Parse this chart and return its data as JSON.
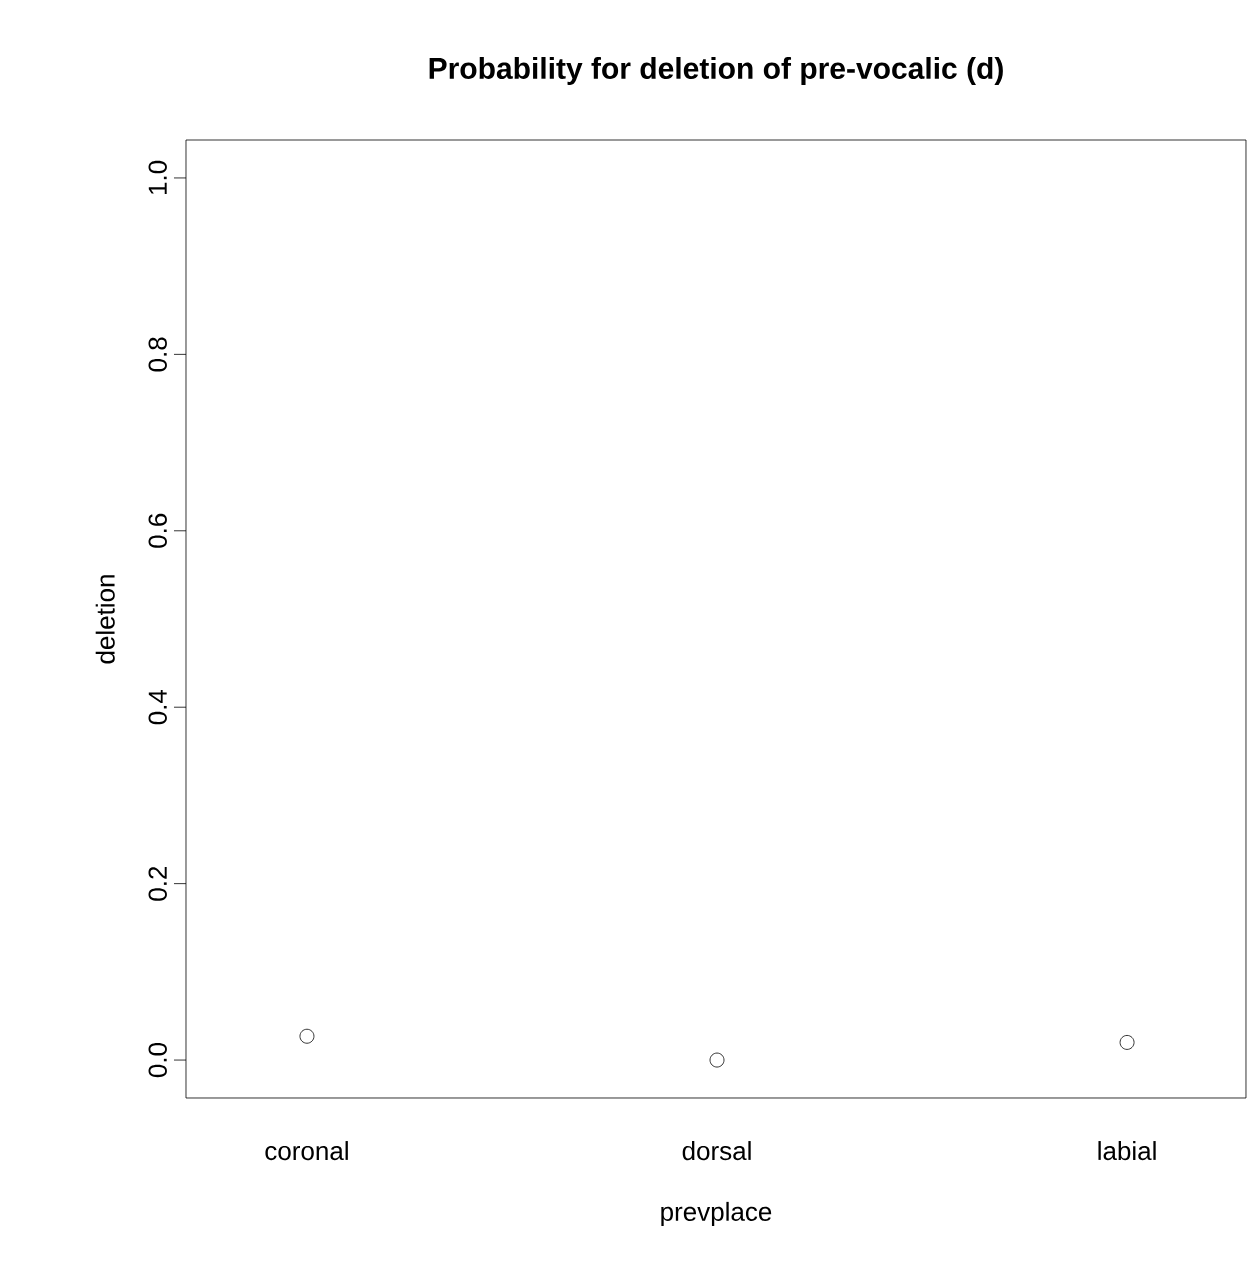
{
  "chart_data": {
    "type": "scatter",
    "title": "**Probability for deletion of pre-vocalic (d)**",
    "xlabel": "prevplace",
    "ylabel": "deletion",
    "categories": [
      "coronal",
      "dorsal",
      "labial"
    ],
    "values": [
      0.027,
      0.0,
      0.02
    ],
    "color": "#000000",
    "marker": "circle",
    "ylim": [
      -0.043,
      1.043
    ],
    "yticks": [
      {
        "value": 0,
        "label": "0.0"
      },
      {
        "value": 0.2,
        "label": "0.2"
      },
      {
        "value": 0.4,
        "label": "0.4"
      },
      {
        "value": 0.6,
        "label": "0.6"
      },
      {
        "value": 0.8,
        "label": "0.8"
      },
      {
        "value": 1,
        "label": "1.0"
      }
    ],
    "grid": false
  }
}
